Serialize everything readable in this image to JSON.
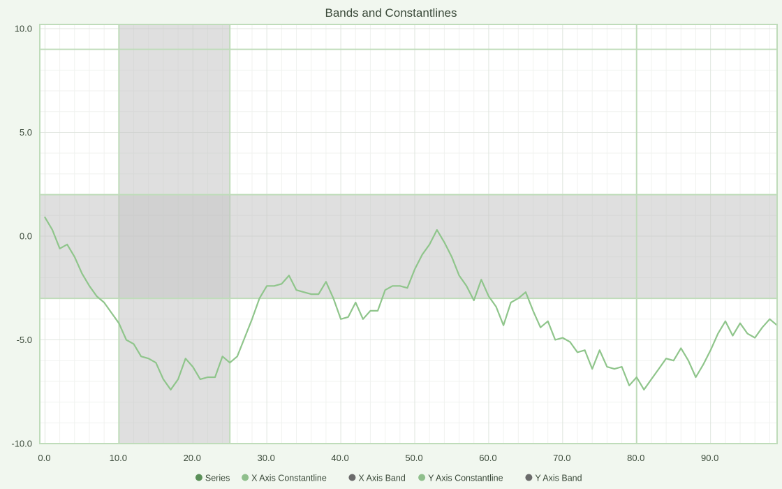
{
  "chart_data": {
    "type": "line",
    "title": "Bands and Constantlines",
    "xlabel": "",
    "ylabel": "",
    "xlim": [
      -0.7,
      99
    ],
    "ylim": [
      -10,
      10.2
    ],
    "xticks": [
      0,
      10,
      20,
      30,
      40,
      50,
      60,
      70,
      80,
      90
    ],
    "xtick_labels": [
      "0.0",
      "10.0",
      "20.0",
      "30.0",
      "40.0",
      "50.0",
      "60.0",
      "70.0",
      "80.0",
      "90.0"
    ],
    "yticks": [
      10,
      5,
      0,
      -5,
      -10
    ],
    "ytick_labels": [
      "10.0",
      "5.0",
      "0.0",
      "-5.0",
      "-10.0"
    ],
    "grid": true,
    "legend_position": "bottom",
    "x_axis_band": {
      "from": 10,
      "to": 25
    },
    "x_axis_constantline": 80,
    "y_axis_band": {
      "from": -3,
      "to": 2
    },
    "y_axis_constantline": 9,
    "series": [
      {
        "name": "Series",
        "x": [
          0,
          1,
          2,
          3,
          4,
          5,
          6,
          7,
          8,
          9,
          10,
          11,
          12,
          13,
          14,
          15,
          16,
          17,
          18,
          19,
          20,
          21,
          22,
          23,
          24,
          25,
          26,
          27,
          28,
          29,
          30,
          31,
          32,
          33,
          34,
          35,
          36,
          37,
          38,
          39,
          40,
          41,
          42,
          43,
          44,
          45,
          46,
          47,
          48,
          49,
          50,
          51,
          52,
          53,
          54,
          55,
          56,
          57,
          58,
          59,
          60,
          61,
          62,
          63,
          64,
          65,
          66,
          67,
          68,
          69,
          70,
          71,
          72,
          73,
          74,
          75,
          76,
          77,
          78,
          79,
          80,
          81,
          82,
          83,
          84,
          85,
          86,
          87,
          88,
          89,
          90,
          91,
          92,
          93,
          94,
          95,
          96,
          97,
          98,
          99
        ],
        "values": [
          0.9,
          0.3,
          -0.6,
          -0.4,
          -1.0,
          -1.8,
          -2.4,
          -2.9,
          -3.2,
          -3.7,
          -4.2,
          -5.0,
          -5.2,
          -5.8,
          -5.9,
          -6.1,
          -6.9,
          -7.4,
          -6.9,
          -5.9,
          -6.3,
          -6.9,
          -6.8,
          -6.8,
          -5.8,
          -6.1,
          -5.8,
          -4.9,
          -4.0,
          -3.0,
          -2.4,
          -2.4,
          -2.3,
          -1.9,
          -2.6,
          -2.7,
          -2.8,
          -2.8,
          -2.2,
          -3.0,
          -4.0,
          -3.9,
          -3.2,
          -4.0,
          -3.6,
          -3.6,
          -2.6,
          -2.4,
          -2.4,
          -2.5,
          -1.6,
          -0.9,
          -0.4,
          0.3,
          -0.3,
          -1.0,
          -1.9,
          -2.4,
          -3.1,
          -2.1,
          -2.9,
          -3.4,
          -4.3,
          -3.2,
          -3.0,
          -2.7,
          -3.6,
          -4.4,
          -4.1,
          -5.0,
          -4.9,
          -5.1,
          -5.6,
          -5.5,
          -6.4,
          -5.5,
          -6.3,
          -6.4,
          -6.3,
          -7.2,
          -6.8,
          -7.4,
          -6.9,
          -6.4,
          -5.9,
          -6.0,
          -5.4,
          -6.0,
          -6.8,
          -6.2,
          -5.5,
          -4.7,
          -4.1,
          -4.8,
          -4.2,
          -4.7,
          -4.9,
          -4.4,
          -4.0,
          -4.3
        ]
      }
    ],
    "legend": [
      {
        "label": "Series",
        "color": "#5a8f58"
      },
      {
        "label": "X Axis Constantline",
        "color": "#8fbf8c"
      },
      {
        "label": "X Axis Band",
        "color": "#6b6b6b"
      },
      {
        "label": "Y Axis Constantline",
        "color": "#8fbf8c"
      },
      {
        "label": "Y Axis Band",
        "color": "#6b6b6b"
      }
    ],
    "colors": {
      "series_line": "#8fc58b",
      "constantline": "#bfdcba",
      "band_fill": "#c4c4c4",
      "plot_border": "#bfdcba",
      "grid_major": "#dfe5de",
      "grid_minor": "#f0f2ef",
      "plot_bg": "#ffffff"
    }
  }
}
